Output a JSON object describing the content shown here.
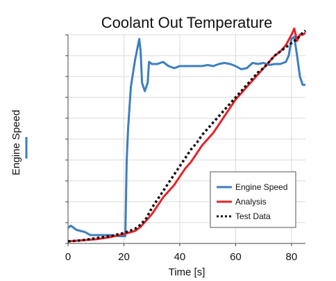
{
  "chart_data": {
    "type": "line",
    "title": "Coolant Out Temperature",
    "xlabel": "Time [s]",
    "ylabel": "Engine Speed",
    "xlim": [
      0,
      85
    ],
    "ylim": [
      0,
      1
    ],
    "x_ticks": [
      0,
      20,
      40,
      60,
      80
    ],
    "x_tick_labels": [
      "0",
      "20",
      "40",
      "60",
      "80"
    ],
    "y_tick_count": 11,
    "y_tick_labels_shown": false,
    "grid": true,
    "legend_position": "bottom-right",
    "series": [
      {
        "name": "Engine Speed",
        "color": "#3d7ebf",
        "style": "solid",
        "x": [
          0,
          1,
          3,
          6,
          8,
          10,
          12,
          15,
          18,
          20.5,
          21,
          21.5,
          22.5,
          24,
          25.5,
          26,
          26.5,
          27.5,
          28.5,
          29,
          30,
          32,
          34,
          36,
          38,
          40,
          42,
          44,
          46,
          48,
          50,
          52,
          54,
          56,
          58,
          60,
          62,
          64,
          66,
          68,
          70,
          72,
          74,
          76,
          78,
          79,
          80,
          81,
          82,
          83,
          84,
          85
        ],
        "y": [
          0.075,
          0.085,
          0.065,
          0.055,
          0.04,
          0.04,
          0.04,
          0.04,
          0.035,
          0.035,
          0.4,
          0.55,
          0.75,
          0.88,
          0.98,
          0.92,
          0.77,
          0.73,
          0.77,
          0.87,
          0.86,
          0.86,
          0.87,
          0.85,
          0.84,
          0.85,
          0.85,
          0.85,
          0.85,
          0.85,
          0.855,
          0.85,
          0.86,
          0.865,
          0.86,
          0.85,
          0.835,
          0.84,
          0.865,
          0.86,
          0.865,
          0.855,
          0.86,
          0.86,
          0.87,
          0.9,
          0.98,
          0.99,
          0.9,
          0.8,
          0.76,
          0.76
        ]
      },
      {
        "name": "Analysis",
        "color": "#e8232a",
        "style": "solid",
        "x": [
          0,
          5,
          10,
          15,
          20,
          24,
          26,
          28,
          30,
          32,
          34,
          36,
          38,
          40,
          42,
          44,
          46,
          48,
          50,
          52,
          54,
          56,
          58,
          60,
          62,
          64,
          66,
          68,
          70,
          72,
          74,
          76,
          78,
          80,
          81,
          82,
          83,
          84,
          85
        ],
        "y": [
          0.01,
          0.015,
          0.02,
          0.03,
          0.045,
          0.06,
          0.08,
          0.11,
          0.14,
          0.18,
          0.22,
          0.25,
          0.28,
          0.32,
          0.36,
          0.39,
          0.43,
          0.47,
          0.5,
          0.53,
          0.57,
          0.61,
          0.65,
          0.69,
          0.72,
          0.75,
          0.78,
          0.81,
          0.84,
          0.87,
          0.9,
          0.92,
          0.95,
          1.0,
          1.03,
          0.97,
          1.0,
          1.0,
          1.01
        ]
      },
      {
        "name": "Test Data",
        "color": "#111111",
        "style": "dotted",
        "x": [
          0,
          5,
          10,
          15,
          20,
          24,
          26,
          28,
          30,
          32,
          34,
          36,
          38,
          40,
          42,
          44,
          46,
          48,
          50,
          52,
          54,
          56,
          58,
          60,
          62,
          64,
          66,
          68,
          70,
          72,
          74,
          76,
          78,
          80,
          82,
          84,
          85
        ],
        "y": [
          0.01,
          0.015,
          0.025,
          0.035,
          0.05,
          0.07,
          0.09,
          0.12,
          0.17,
          0.21,
          0.25,
          0.29,
          0.33,
          0.37,
          0.41,
          0.45,
          0.48,
          0.52,
          0.55,
          0.58,
          0.61,
          0.64,
          0.67,
          0.7,
          0.73,
          0.76,
          0.79,
          0.82,
          0.84,
          0.87,
          0.9,
          0.92,
          0.94,
          0.96,
          0.98,
          1.01,
          1.02
        ]
      }
    ]
  }
}
